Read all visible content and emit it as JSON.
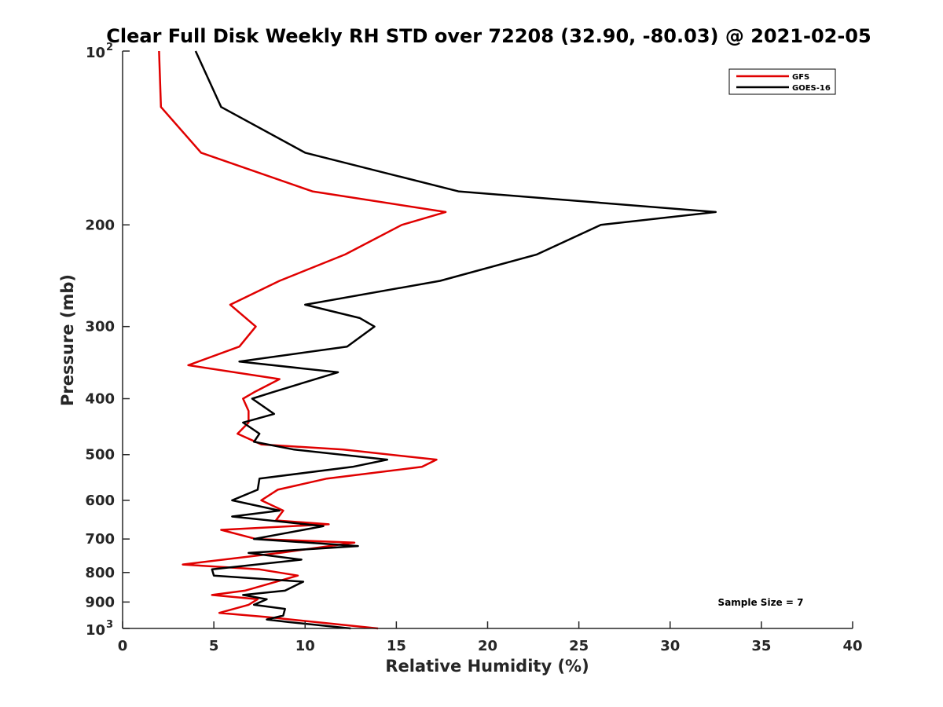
{
  "chart_data": {
    "type": "line",
    "title": "Clear Full Disk Weekly RH STD over 72208 (32.90, -80.03) @ 2021-02-05",
    "xlabel": "Relative Humidity (%)",
    "ylabel": "Pressure (mb)",
    "xlim": [
      0,
      40
    ],
    "ylim": [
      100,
      1000
    ],
    "yscale": "log",
    "y_reversed": true,
    "grid": false,
    "legend_position": "top-right",
    "x_ticks": [
      0,
      5,
      10,
      15,
      20,
      25,
      30,
      35,
      40
    ],
    "x_tick_labels": [
      "0",
      "5",
      "10",
      "15",
      "20",
      "25",
      "30",
      "35",
      "40"
    ],
    "y_ticks": [
      200,
      300,
      400,
      500,
      600,
      700,
      800,
      900
    ],
    "y_tick_labels": [
      "200",
      "300",
      "400",
      "500",
      "600",
      "700",
      "800",
      "900"
    ],
    "y_end_labels": {
      "top": {
        "base": "10",
        "exp": "2"
      },
      "bottom": {
        "base": "10",
        "exp": "3"
      }
    },
    "annotation": "Sample Size = 7",
    "series": [
      {
        "name": "GFS",
        "color": "#e00000",
        "points": [
          [
            2.0,
            100
          ],
          [
            2.1,
            125
          ],
          [
            4.3,
            150
          ],
          [
            10.4,
            175
          ],
          [
            17.7,
            190
          ],
          [
            15.3,
            200
          ],
          [
            12.2,
            225
          ],
          [
            8.6,
            250
          ],
          [
            5.9,
            275
          ],
          [
            7.3,
            300
          ],
          [
            6.4,
            325
          ],
          [
            3.6,
            350
          ],
          [
            8.6,
            370
          ],
          [
            7.2,
            390
          ],
          [
            6.6,
            400
          ],
          [
            6.9,
            420
          ],
          [
            6.9,
            440
          ],
          [
            6.3,
            460
          ],
          [
            7.6,
            480
          ],
          [
            12.1,
            490
          ],
          [
            17.2,
            510
          ],
          [
            16.4,
            525
          ],
          [
            11.2,
            550
          ],
          [
            8.5,
            575
          ],
          [
            7.6,
            600
          ],
          [
            8.8,
            625
          ],
          [
            8.4,
            650
          ],
          [
            11.3,
            660
          ],
          [
            5.4,
            675
          ],
          [
            7.3,
            700
          ],
          [
            12.7,
            710
          ],
          [
            8.6,
            740
          ],
          [
            3.3,
            775
          ],
          [
            7.5,
            790
          ],
          [
            9.6,
            810
          ],
          [
            6.7,
            860
          ],
          [
            4.9,
            875
          ],
          [
            7.4,
            890
          ],
          [
            6.9,
            910
          ],
          [
            5.3,
            940
          ],
          [
            7.8,
            955
          ],
          [
            14.0,
            1000
          ]
        ]
      },
      {
        "name": "GOES-16",
        "color": "#000000",
        "points": [
          [
            4.0,
            100
          ],
          [
            5.4,
            125
          ],
          [
            10.0,
            150
          ],
          [
            18.4,
            175
          ],
          [
            32.5,
            190
          ],
          [
            26.2,
            200
          ],
          [
            22.7,
            225
          ],
          [
            17.4,
            250
          ],
          [
            10.0,
            275
          ],
          [
            13.0,
            290
          ],
          [
            13.8,
            300
          ],
          [
            12.3,
            325
          ],
          [
            6.4,
            345
          ],
          [
            11.8,
            360
          ],
          [
            8.2,
            390
          ],
          [
            7.1,
            400
          ],
          [
            8.3,
            425
          ],
          [
            6.6,
            440
          ],
          [
            7.5,
            460
          ],
          [
            7.2,
            475
          ],
          [
            9.4,
            490
          ],
          [
            14.5,
            510
          ],
          [
            12.6,
            525
          ],
          [
            7.5,
            550
          ],
          [
            7.4,
            575
          ],
          [
            6.0,
            600
          ],
          [
            8.6,
            625
          ],
          [
            6.0,
            640
          ],
          [
            11.0,
            665
          ],
          [
            7.2,
            700
          ],
          [
            12.9,
            720
          ],
          [
            6.9,
            740
          ],
          [
            9.8,
            760
          ],
          [
            4.9,
            790
          ],
          [
            5.0,
            810
          ],
          [
            9.9,
            830
          ],
          [
            8.9,
            860
          ],
          [
            6.6,
            875
          ],
          [
            7.9,
            890
          ],
          [
            7.2,
            910
          ],
          [
            8.9,
            925
          ],
          [
            8.8,
            950
          ],
          [
            7.9,
            965
          ],
          [
            9.1,
            975
          ],
          [
            12.5,
            1000
          ]
        ]
      }
    ]
  }
}
